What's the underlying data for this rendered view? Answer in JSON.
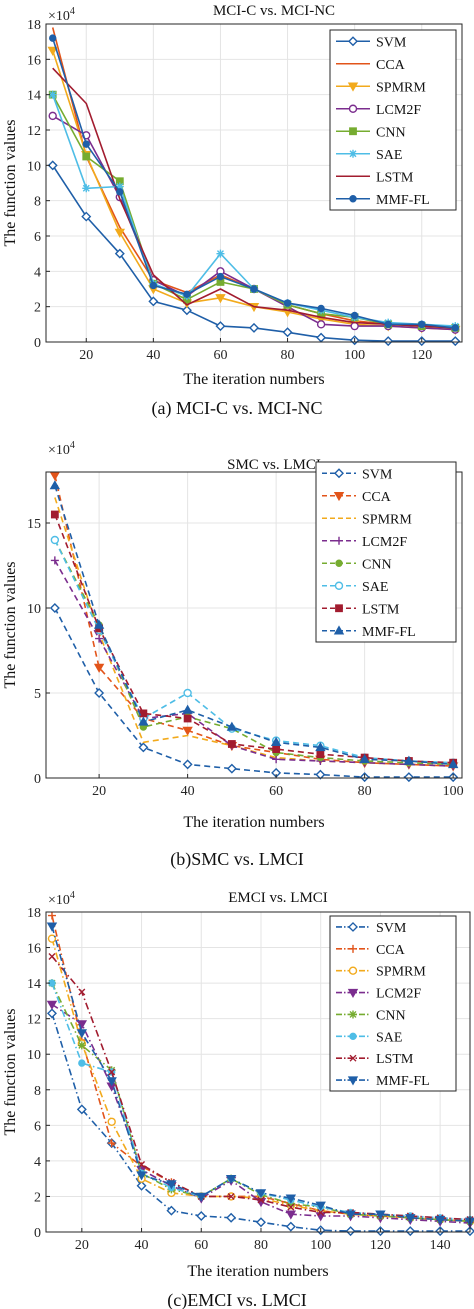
{
  "colors": {
    "SVM": "#1f5fa8",
    "CCA": "#e2541a",
    "SPMRM": "#f2aa1c",
    "LCM2F": "#7b2d8e",
    "CNN": "#76ac30",
    "SAE": "#4ebde6",
    "LSTM": "#a21c2f",
    "MMF-FL": "#1f5fa8"
  },
  "chart_data": [
    {
      "type": "line",
      "title": "MCI-C vs. MCI-NC",
      "caption": "(a) MCI-C vs. MCI-NC",
      "xlabel": "The iteration numbers",
      "ylabel": "The function values",
      "exponent_label": "×10",
      "exponent_power": "4",
      "xlim": [
        8,
        132
      ],
      "ylim": [
        0,
        18
      ],
      "xticks": [
        20,
        40,
        60,
        80,
        100,
        120
      ],
      "yticks": [
        0,
        2,
        4,
        6,
        8,
        10,
        12,
        14,
        16,
        18
      ],
      "grid": true,
      "legend": "top-right",
      "line_style": "solid",
      "series": [
        {
          "name": "SVM",
          "marker": "diamond",
          "x": [
            10,
            20,
            30,
            40,
            50,
            60,
            70,
            80,
            90,
            100,
            110,
            120,
            130
          ],
          "y": [
            10,
            7.1,
            5,
            2.3,
            1.8,
            0.9,
            0.8,
            0.55,
            0.25,
            0.1,
            0.05,
            0.05,
            0.05
          ]
        },
        {
          "name": "CCA",
          "marker": "none",
          "x": [
            10,
            20,
            30,
            40,
            50,
            60,
            70,
            80,
            90,
            100,
            110,
            120,
            130
          ],
          "y": [
            17.8,
            10.5,
            6.5,
            3.5,
            2.8,
            3.8,
            3,
            2.1,
            1.6,
            1.2,
            1,
            0.9,
            0.8
          ]
        },
        {
          "name": "SPMRM",
          "marker": "tri-down",
          "x": [
            10,
            20,
            30,
            40,
            50,
            60,
            70,
            80,
            90,
            100,
            110,
            120,
            130
          ],
          "y": [
            16.5,
            10.6,
            6.2,
            3.0,
            2.2,
            2.5,
            2.0,
            1.7,
            1.3,
            1.0,
            0.9,
            0.8,
            0.7
          ]
        },
        {
          "name": "LCM2F",
          "marker": "circle",
          "x": [
            10,
            20,
            30,
            40,
            50,
            60,
            70,
            80,
            90,
            100,
            110,
            120,
            130
          ],
          "y": [
            12.8,
            11.7,
            8.2,
            3.5,
            2.6,
            4.0,
            3.0,
            2.0,
            1.0,
            0.9,
            0.9,
            0.8,
            0.7
          ]
        },
        {
          "name": "CNN",
          "marker": "square",
          "x": [
            10,
            20,
            30,
            40,
            50,
            60,
            70,
            80,
            90,
            100,
            110,
            120,
            130
          ],
          "y": [
            14,
            10.5,
            9.1,
            3.3,
            2.4,
            3.4,
            3.0,
            2.1,
            1.6,
            1.4,
            1.0,
            0.9,
            0.8
          ]
        },
        {
          "name": "SAE",
          "marker": "star",
          "x": [
            10,
            20,
            30,
            40,
            50,
            60,
            70,
            80,
            90,
            100,
            110,
            120,
            130
          ],
          "y": [
            14,
            8.7,
            8.8,
            3.3,
            2.6,
            5.0,
            3.0,
            2.2,
            1.8,
            1.4,
            1.1,
            1.0,
            0.9
          ]
        },
        {
          "name": "LSTM",
          "marker": "none",
          "x": [
            10,
            20,
            30,
            40,
            50,
            60,
            70,
            80,
            90,
            100,
            110,
            120,
            130
          ],
          "y": [
            15.5,
            13.5,
            8.1,
            3.8,
            2.1,
            3.0,
            2.0,
            1.8,
            1.4,
            1.1,
            1.0,
            0.9,
            0.8
          ]
        },
        {
          "name": "MMF-FL",
          "marker": "circle-filled",
          "x": [
            10,
            20,
            30,
            40,
            50,
            60,
            70,
            80,
            90,
            100,
            110,
            120,
            130
          ],
          "y": [
            17.2,
            11.2,
            8.5,
            3.2,
            2.7,
            3.7,
            3.0,
            2.2,
            1.9,
            1.5,
            1.0,
            1.0,
            0.8
          ]
        }
      ]
    },
    {
      "type": "line",
      "title": "SMC vs. LMCI",
      "caption": "(b)SMC vs. LMCI",
      "xlabel": "The iteration numbers",
      "ylabel": "The function values",
      "exponent_label": "×10",
      "exponent_power": "4",
      "xlim": [
        8,
        102
      ],
      "ylim": [
        0,
        18
      ],
      "xticks": [
        20,
        40,
        60,
        80,
        100
      ],
      "yticks": [
        0,
        5,
        10,
        15
      ],
      "grid": true,
      "legend": "top-right",
      "line_style": "dashed",
      "series": [
        {
          "name": "SVM",
          "marker": "diamond",
          "x": [
            10,
            20,
            30,
            40,
            50,
            60,
            70,
            80,
            90,
            100
          ],
          "y": [
            10,
            5.0,
            1.8,
            0.8,
            0.55,
            0.3,
            0.2,
            0.05,
            0.05,
            0.05
          ]
        },
        {
          "name": "CCA",
          "marker": "tri-down",
          "x": [
            10,
            20,
            30,
            40,
            50,
            60,
            70,
            80,
            90,
            100
          ],
          "y": [
            17.8,
            6.5,
            3.5,
            2.8,
            1.9,
            1.5,
            1.1,
            0.9,
            0.8,
            0.7
          ]
        },
        {
          "name": "SPMRM",
          "marker": "none",
          "x": [
            10,
            20,
            30,
            40,
            50,
            60,
            70,
            80,
            90,
            100
          ],
          "y": [
            16.5,
            8.5,
            2.1,
            2.5,
            1.9,
            1.2,
            1.0,
            0.9,
            0.8,
            0.7
          ]
        },
        {
          "name": "LCM2F",
          "marker": "plus",
          "x": [
            10,
            20,
            30,
            40,
            50,
            60,
            70,
            80,
            90,
            100
          ],
          "y": [
            12.8,
            8.2,
            3.5,
            3.8,
            1.9,
            1.1,
            1.0,
            0.9,
            0.8,
            0.7
          ]
        },
        {
          "name": "CNN",
          "marker": "circle-filled",
          "x": [
            10,
            20,
            30,
            40,
            50,
            60,
            70,
            80,
            90,
            100
          ],
          "y": [
            14,
            9.0,
            3.0,
            3.6,
            2.9,
            1.5,
            1.2,
            1.0,
            0.9,
            0.8
          ]
        },
        {
          "name": "SAE",
          "marker": "circle",
          "x": [
            10,
            20,
            30,
            40,
            50,
            60,
            70,
            80,
            90,
            100
          ],
          "y": [
            14,
            8.7,
            3.5,
            5.0,
            2.9,
            2.2,
            1.9,
            1.2,
            1.0,
            0.9
          ]
        },
        {
          "name": "LSTM",
          "marker": "square",
          "x": [
            10,
            20,
            30,
            40,
            50,
            60,
            70,
            80,
            90,
            100
          ],
          "y": [
            15.5,
            8.8,
            3.8,
            3.5,
            2.0,
            1.7,
            1.4,
            1.2,
            1.0,
            0.9
          ]
        },
        {
          "name": "MMF-FL",
          "marker": "tri-up",
          "x": [
            10,
            20,
            30,
            40,
            50,
            60,
            70,
            80,
            90,
            100
          ],
          "y": [
            17.2,
            9.0,
            3.3,
            4.0,
            3.0,
            2.1,
            1.8,
            1.1,
            1.0,
            0.8
          ]
        }
      ]
    },
    {
      "type": "line",
      "title": "EMCI vs. LMCI",
      "caption": "(c)EMCI vs. LMCI",
      "xlabel": "The iteration numbers",
      "ylabel": "The function values",
      "exponent_label": "×10",
      "exponent_power": "4",
      "xlim": [
        8,
        150
      ],
      "ylim": [
        0,
        18
      ],
      "xticks": [
        20,
        40,
        60,
        80,
        100,
        120,
        140
      ],
      "yticks": [
        0,
        2,
        4,
        6,
        8,
        10,
        12,
        14,
        16,
        18
      ],
      "grid": true,
      "legend": "top-right",
      "line_style": "dashdot",
      "series": [
        {
          "name": "SVM",
          "marker": "diamond",
          "x": [
            10,
            20,
            30,
            40,
            50,
            60,
            70,
            80,
            90,
            100,
            110,
            120,
            130,
            140,
            150
          ],
          "y": [
            12.3,
            6.9,
            5.0,
            2.6,
            1.2,
            0.9,
            0.8,
            0.55,
            0.3,
            0.1,
            0.05,
            0.05,
            0.05,
            0.05,
            0.05
          ]
        },
        {
          "name": "CCA",
          "marker": "plus",
          "x": [
            10,
            20,
            30,
            40,
            50,
            60,
            70,
            80,
            90,
            100,
            110,
            120,
            130,
            140,
            150
          ],
          "y": [
            17.8,
            10.8,
            5.0,
            3.7,
            2.8,
            2.0,
            2.0,
            2.0,
            1.6,
            1.2,
            1.0,
            0.9,
            0.8,
            0.7,
            0.6
          ]
        },
        {
          "name": "SPMRM",
          "marker": "circle",
          "x": [
            10,
            20,
            30,
            40,
            50,
            60,
            70,
            80,
            90,
            100,
            110,
            120,
            130,
            140,
            150
          ],
          "y": [
            16.5,
            10.6,
            6.2,
            3.0,
            2.2,
            2.0,
            2.0,
            1.9,
            1.5,
            1.2,
            1.0,
            0.9,
            0.8,
            0.7,
            0.6
          ]
        },
        {
          "name": "LCM2F",
          "marker": "tri-down",
          "x": [
            10,
            20,
            30,
            40,
            50,
            60,
            70,
            80,
            90,
            100,
            110,
            120,
            130,
            140,
            150
          ],
          "y": [
            12.8,
            11.7,
            8.2,
            3.5,
            2.6,
            1.9,
            2.9,
            1.7,
            1.0,
            0.9,
            0.9,
            0.8,
            0.7,
            0.6,
            0.5
          ]
        },
        {
          "name": "CNN",
          "marker": "star",
          "x": [
            10,
            20,
            30,
            40,
            50,
            60,
            70,
            80,
            90,
            100,
            110,
            120,
            130,
            140,
            150
          ],
          "y": [
            14,
            10.5,
            9.1,
            3.3,
            2.4,
            2.0,
            3.0,
            2.1,
            1.6,
            1.4,
            1.0,
            0.9,
            0.8,
            0.7,
            0.6
          ]
        },
        {
          "name": "SAE",
          "marker": "circle-filled",
          "x": [
            10,
            20,
            30,
            40,
            50,
            60,
            70,
            80,
            90,
            100,
            110,
            120,
            130,
            140,
            150
          ],
          "y": [
            14,
            9.5,
            9.0,
            3.3,
            2.5,
            2.0,
            3.0,
            2.2,
            1.8,
            1.4,
            1.1,
            1.0,
            0.9,
            0.8,
            0.7
          ]
        },
        {
          "name": "LSTM",
          "marker": "x",
          "x": [
            10,
            20,
            30,
            40,
            50,
            60,
            70,
            80,
            90,
            100,
            110,
            120,
            130,
            140,
            150
          ],
          "y": [
            15.5,
            13.5,
            9.0,
            3.8,
            2.8,
            2.0,
            2.0,
            1.8,
            1.4,
            1.1,
            1.1,
            1.0,
            0.9,
            0.8,
            0.7
          ]
        },
        {
          "name": "MMF-FL",
          "marker": "tri-down",
          "x": [
            10,
            20,
            30,
            40,
            50,
            60,
            70,
            80,
            90,
            100,
            110,
            120,
            130,
            140,
            150
          ],
          "y": [
            17.2,
            11.2,
            8.5,
            3.2,
            2.7,
            2.0,
            3.0,
            2.2,
            1.9,
            1.5,
            1.0,
            1.0,
            0.8,
            0.7,
            0.6
          ]
        }
      ]
    }
  ]
}
